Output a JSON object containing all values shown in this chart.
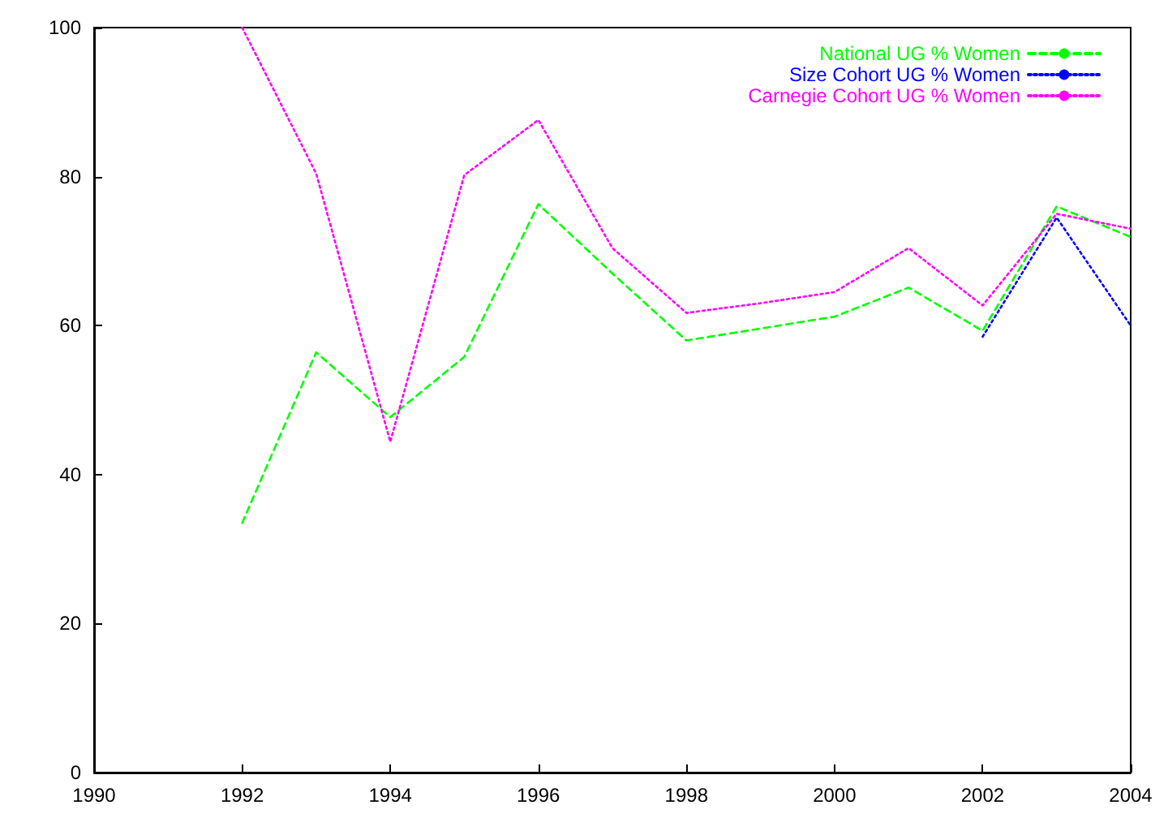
{
  "chart_data": {
    "type": "line",
    "x": [
      1992,
      1993,
      1994,
      1995,
      1996,
      1997,
      1998,
      1999,
      2000,
      2001,
      2002,
      2003,
      2004
    ],
    "series": [
      {
        "name": "National UG % Women",
        "color": "#00ff00",
        "line_style": "dashed",
        "values": [
          33.5,
          56.4,
          47.7,
          55.8,
          76.3,
          67,
          58,
          59.6,
          61.2,
          65.1,
          59.3,
          76,
          71.9
        ]
      },
      {
        "name": "Size Cohort UG % Women",
        "color": "#0000ff",
        "line_style": "dotted",
        "values": [
          null,
          null,
          null,
          null,
          null,
          null,
          null,
          null,
          null,
          null,
          58.5,
          74.5,
          60
        ]
      },
      {
        "name": "Carnegie Cohort UG % Women",
        "color": "#ff00ff",
        "line_style": "dotted",
        "values": [
          100,
          80.4,
          44.4,
          80.2,
          87.6,
          70.4,
          61.7,
          63,
          64.5,
          70.4,
          62.7,
          75,
          73
        ]
      }
    ],
    "xlim": [
      1990,
      2004
    ],
    "xticks": [
      1990,
      1992,
      1994,
      1996,
      1998,
      2000,
      2002,
      2004
    ],
    "ylim": [
      0,
      100
    ],
    "yticks": [
      0,
      20,
      40,
      60,
      80,
      100
    ],
    "grid": false,
    "legend": "top right",
    "marker": "none"
  }
}
